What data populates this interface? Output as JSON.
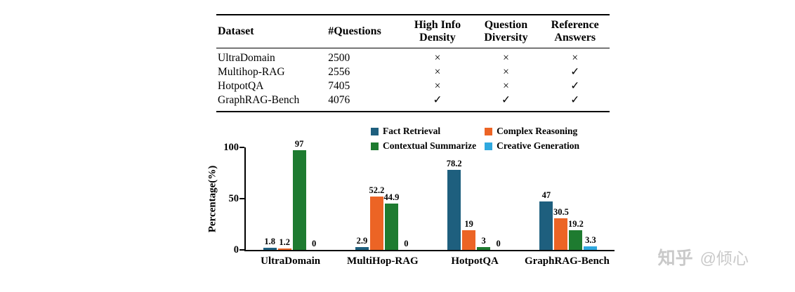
{
  "table": {
    "headers": [
      "Dataset",
      "#Questions",
      "High Info\nDensity",
      "Question\nDiversity",
      "Reference\nAnswers"
    ],
    "rows": [
      [
        "UltraDomain",
        "2500",
        "×",
        "×",
        "×"
      ],
      [
        "Multihop-RAG",
        "2556",
        "×",
        "×",
        "✓"
      ],
      [
        "HotpotQA",
        "7405",
        "×",
        "×",
        "✓"
      ],
      [
        "GraphRAG-Bench",
        "4076",
        "✓",
        "✓",
        "✓"
      ]
    ]
  },
  "chart_data": {
    "type": "bar",
    "categories": [
      "UltraDomain",
      "MultiHop-RAG",
      "HotpotQA",
      "GraphRAG-Bench"
    ],
    "series": [
      {
        "name": "Fact Retrieval",
        "color": "#1E5F7E",
        "values": [
          1.8,
          2.9,
          78.2,
          47
        ]
      },
      {
        "name": "Complex Reasoning",
        "color": "#EC6425",
        "values": [
          1.2,
          52.2,
          19,
          30.5
        ]
      },
      {
        "name": "Contextual Summarize",
        "color": "#1E7B30",
        "values": [
          97,
          44.9,
          3,
          19.2
        ]
      },
      {
        "name": "Creative Generation",
        "color": "#2FA8DF",
        "values": [
          0,
          0,
          0,
          3.3
        ]
      }
    ],
    "title": "",
    "xlabel": "",
    "ylabel": "Percentage(%)",
    "yticks": [
      0,
      50,
      100
    ],
    "ylim": [
      0,
      100
    ],
    "grid": false,
    "legend_position": "top"
  },
  "watermark": {
    "brand": "知乎",
    "handle": "@倾心",
    "color": "#c9c9c9"
  }
}
